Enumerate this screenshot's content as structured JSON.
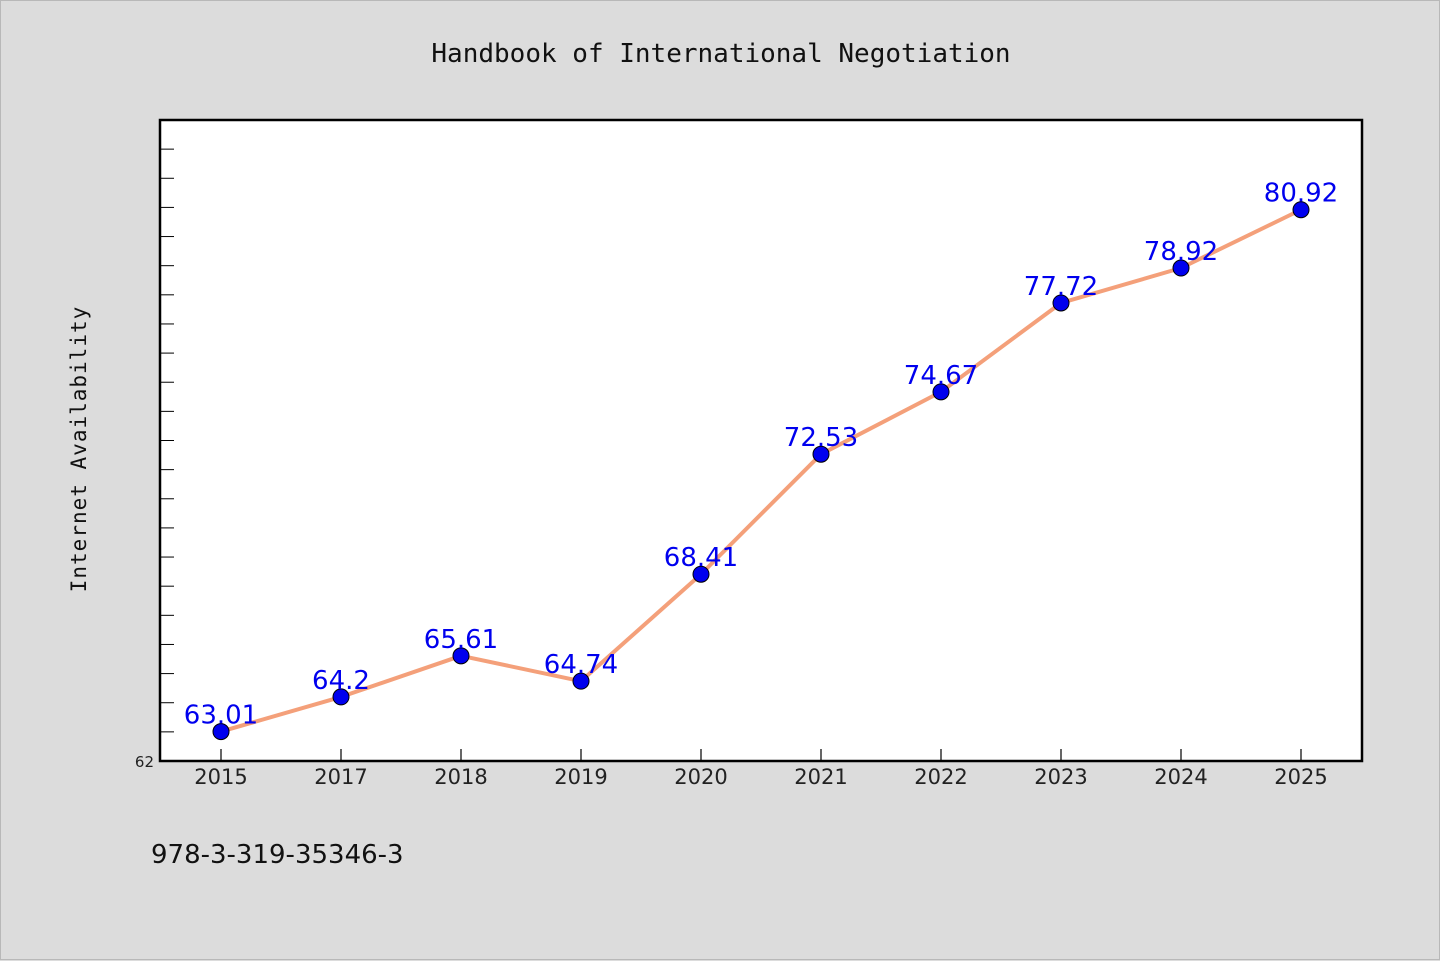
{
  "chart_data": {
    "type": "line",
    "title": "Handbook of International Negotiation",
    "xlabel": "",
    "ylabel": "Internet Availability",
    "categories": [
      "2015",
      "2017",
      "2018",
      "2019",
      "2020",
      "2021",
      "2022",
      "2023",
      "2024",
      "2025"
    ],
    "series": [
      {
        "values": [
          63.01,
          64.2,
          65.61,
          64.74,
          68.41,
          72.53,
          74.67,
          77.72,
          78.92,
          80.92
        ],
        "labels": [
          "63.01",
          "64.2",
          "65.61",
          "64.74",
          "68.41",
          "72.53",
          "74.67",
          "77.72",
          "78.92",
          "80.92"
        ],
        "line_color": "#f4a07a",
        "marker_color": "#0000ee"
      }
    ],
    "ylim": [
      62,
      84
    ],
    "ytick_min_label": "62",
    "grid": false,
    "legend": "none"
  },
  "footer": {
    "text": "978-3-319-35346-3"
  }
}
